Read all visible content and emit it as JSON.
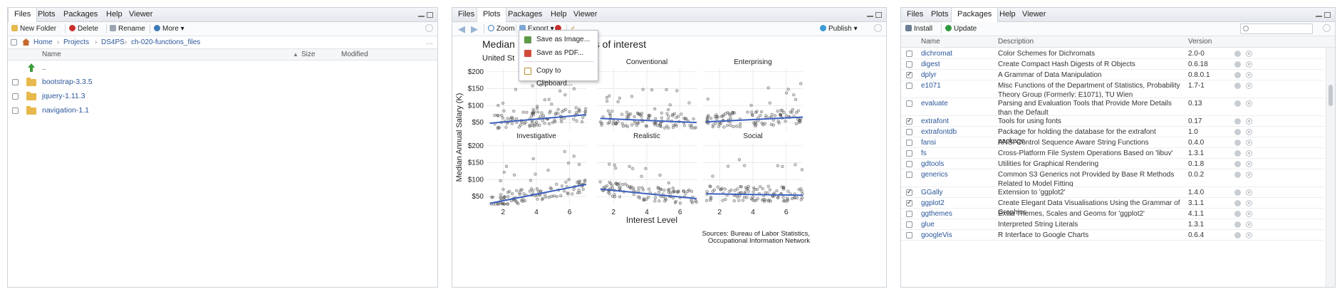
{
  "files_pane": {
    "tabs": [
      "Files",
      "Plots",
      "Packages",
      "Help",
      "Viewer"
    ],
    "toolbar": {
      "new_folder": "New Folder",
      "delete": "Delete",
      "rename": "Rename",
      "more": "More"
    },
    "breadcrumb": [
      "Home",
      "Projects",
      "DS4PS",
      "ch-020-functions_files"
    ],
    "columns": {
      "name": "Name",
      "size": "Size",
      "modified": "Modified"
    },
    "rows": [
      {
        "name": "..",
        "type": "up"
      },
      {
        "name": "bootstrap-3.3.5",
        "type": "folder"
      },
      {
        "name": "jquery-1.11.3",
        "type": "folder"
      },
      {
        "name": "navigation-1.1",
        "type": "folder"
      }
    ]
  },
  "plots_pane": {
    "tabs": [
      "Files",
      "Plots",
      "Packages",
      "Help",
      "Viewer"
    ],
    "toolbar": {
      "zoom": "Zoom",
      "export": "Export",
      "publish": "Publish"
    },
    "export_menu": {
      "save_image": "Save as Image...",
      "save_pdf": "Save as PDF...",
      "copy_clipboard": "Copy to Clipboard..."
    }
  },
  "chart_data": {
    "type": "scatter",
    "title_visible_left": "Median",
    "title_visible_right": "as of interest",
    "subtitle_visible": "United St",
    "xlabel": "Interest Level",
    "ylabel": "Median Annual Salary (K)",
    "caption_line1": "Sources: Bureau of Labor Statistics,",
    "caption_line2": "Occupational Information Network",
    "xlim": [
      1,
      7
    ],
    "ylim": [
      25,
      210
    ],
    "x_ticks": [
      "2",
      "4",
      "6"
    ],
    "y_ticks": [
      "$50",
      "$100",
      "$150",
      "$200"
    ],
    "y_tick_values": [
      50,
      100,
      150,
      200
    ],
    "x_tick_values": [
      2,
      4,
      6
    ],
    "grid": true,
    "trend_color": "#3b5fc0",
    "point_color": "#333333",
    "facets": [
      {
        "name": "",
        "trend": [
          [
            1.2,
            48
          ],
          [
            7,
            73
          ]
        ]
      },
      {
        "name": "Conventional",
        "trend": [
          [
            1.2,
            62
          ],
          [
            7,
            50
          ]
        ]
      },
      {
        "name": "Enterprising",
        "trend": [
          [
            1.2,
            52
          ],
          [
            7,
            66
          ]
        ]
      },
      {
        "name": "Investigative",
        "trend": [
          [
            1.2,
            30
          ],
          [
            7,
            86
          ]
        ]
      },
      {
        "name": "Realistic",
        "trend": [
          [
            1.2,
            72
          ],
          [
            7,
            44
          ]
        ]
      },
      {
        "name": "Social",
        "trend": [
          [
            1.2,
            58
          ],
          [
            7,
            54
          ]
        ]
      }
    ]
  },
  "packages_pane": {
    "tabs": [
      "Files",
      "Plots",
      "Packages",
      "Help",
      "Viewer"
    ],
    "toolbar": {
      "install": "Install",
      "update": "Update"
    },
    "columns": {
      "name": "Name",
      "description": "Description",
      "version": "Version"
    },
    "rows": [
      {
        "checked": false,
        "name": "dichromat",
        "desc": "Color Schemes for Dichromats",
        "version": "2.0-0",
        "lines": 1
      },
      {
        "checked": false,
        "name": "digest",
        "desc": "Create Compact Hash Digests of R Objects",
        "version": "0.6.18",
        "lines": 1
      },
      {
        "checked": true,
        "name": "dplyr",
        "desc": "A Grammar of Data Manipulation",
        "version": "0.8.0.1",
        "lines": 1
      },
      {
        "checked": false,
        "name": "e1071",
        "desc": "Misc Functions of the Department of Statistics, Probability Theory Group (Formerly: E1071), TU Wien",
        "version": "1.7-1",
        "lines": 2
      },
      {
        "checked": false,
        "name": "evaluate",
        "desc": "Parsing and Evaluation Tools that Provide More Details than the Default",
        "version": "0.13",
        "lines": 2
      },
      {
        "checked": true,
        "name": "extrafont",
        "desc": "Tools for using fonts",
        "version": "0.17",
        "lines": 1
      },
      {
        "checked": false,
        "name": "extrafontdb",
        "desc": "Package for holding the database for the extrafont package",
        "version": "1.0",
        "lines": 1
      },
      {
        "checked": false,
        "name": "fansi",
        "desc": "ANSI Control Sequence Aware String Functions",
        "version": "0.4.0",
        "lines": 1
      },
      {
        "checked": false,
        "name": "fs",
        "desc": "Cross-Platform File System Operations Based on 'libuv'",
        "version": "1.3.1",
        "lines": 1
      },
      {
        "checked": false,
        "name": "gdtools",
        "desc": "Utilities for Graphical Rendering",
        "version": "0.1.8",
        "lines": 1
      },
      {
        "checked": false,
        "name": "generics",
        "desc": "Common S3 Generics not Provided by Base R Methods Related to Model Fitting",
        "version": "0.0.2",
        "lines": 2
      },
      {
        "checked": true,
        "name": "GGally",
        "desc": "Extension to 'ggplot2'",
        "version": "1.4.0",
        "lines": 1
      },
      {
        "checked": true,
        "name": "ggplot2",
        "desc": "Create Elegant Data Visualisations Using the Grammar of Graphics",
        "version": "3.1.1",
        "lines": 1
      },
      {
        "checked": false,
        "name": "ggthemes",
        "desc": "Extra Themes, Scales and Geoms for 'ggplot2'",
        "version": "4.1.1",
        "lines": 1
      },
      {
        "checked": false,
        "name": "glue",
        "desc": "Interpreted String Literals",
        "version": "1.3.1",
        "lines": 1
      },
      {
        "checked": false,
        "name": "googleVis",
        "desc": "R Interface to Google Charts",
        "version": "0.6.4",
        "lines": 1
      }
    ]
  }
}
